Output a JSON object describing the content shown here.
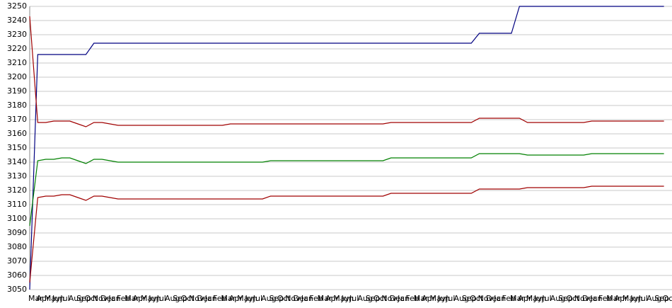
{
  "chart_data": {
    "type": "line",
    "categories": [
      "Mar",
      "Apr",
      "May",
      "Jun",
      "Jul",
      "Aug",
      "Sep",
      "Oct",
      "Nov",
      "Dec",
      "Jan",
      "Feb",
      "Mar",
      "Apr",
      "May",
      "Jun",
      "Jul",
      "Aug",
      "Sep",
      "Oct",
      "Nov",
      "Dec",
      "Jan",
      "Feb",
      "Mar",
      "Apr",
      "May",
      "Jun",
      "Jul",
      "Aug",
      "Sep",
      "Oct",
      "Nov",
      "Dec",
      "Jan",
      "Feb",
      "Mar",
      "Apr",
      "May",
      "Jun",
      "Jul",
      "Aug",
      "Sep",
      "Oct",
      "Nov",
      "Dec",
      "Jan",
      "Feb",
      "Mar",
      "Apr",
      "May",
      "Jun",
      "Jul",
      "Aug",
      "Sep",
      "Oct",
      "Nov",
      "Dec",
      "Jan",
      "Feb",
      "Mar",
      "Apr",
      "May",
      "Jun",
      "Jul",
      "Aug",
      "Sep",
      "Oct",
      "Nov",
      "Dec",
      "Jan",
      "Feb",
      "Mar",
      "Apr",
      "May",
      "Jun",
      "Jul",
      "Aug",
      "Sep",
      "Oct"
    ],
    "series": [
      {
        "color": "#000080",
        "values": [
          3050,
          3216,
          3216,
          3216,
          3216,
          3216,
          3216,
          3216,
          3224,
          3224,
          3224,
          3224,
          3224,
          3224,
          3224,
          3224,
          3224,
          3224,
          3224,
          3224,
          3224,
          3224,
          3224,
          3224,
          3224,
          3224,
          3224,
          3224,
          3224,
          3224,
          3224,
          3224,
          3224,
          3224,
          3224,
          3224,
          3224,
          3224,
          3224,
          3224,
          3224,
          3224,
          3224,
          3224,
          3224,
          3224,
          3224,
          3224,
          3224,
          3224,
          3224,
          3224,
          3224,
          3224,
          3224,
          3224,
          3231,
          3231,
          3231,
          3231,
          3231,
          3250,
          3250,
          3250,
          3250,
          3250,
          3250,
          3250,
          3250,
          3250,
          3250,
          3250,
          3250,
          3250,
          3250,
          3250,
          3250,
          3250,
          3250,
          3250
        ]
      },
      {
        "color": "#a00000",
        "values": [
          3243,
          3168,
          3168,
          3169,
          3169,
          3169,
          3167,
          3165,
          3168,
          3168,
          3167,
          3166,
          3166,
          3166,
          3166,
          3166,
          3166,
          3166,
          3166,
          3166,
          3166,
          3166,
          3166,
          3166,
          3166,
          3167,
          3167,
          3167,
          3167,
          3167,
          3167,
          3167,
          3167,
          3167,
          3167,
          3167,
          3167,
          3167,
          3167,
          3167,
          3167,
          3167,
          3167,
          3167,
          3167,
          3168,
          3168,
          3168,
          3168,
          3168,
          3168,
          3168,
          3168,
          3168,
          3168,
          3168,
          3171,
          3171,
          3171,
          3171,
          3171,
          3171,
          3168,
          3168,
          3168,
          3168,
          3168,
          3168,
          3168,
          3168,
          3169,
          3169,
          3169,
          3169,
          3169,
          3169,
          3169,
          3169,
          3169,
          3169
        ]
      },
      {
        "color": "#008000",
        "values": [
          3095,
          3141,
          3142,
          3142,
          3143,
          3143,
          3141,
          3139,
          3142,
          3142,
          3141,
          3140,
          3140,
          3140,
          3140,
          3140,
          3140,
          3140,
          3140,
          3140,
          3140,
          3140,
          3140,
          3140,
          3140,
          3140,
          3140,
          3140,
          3140,
          3140,
          3141,
          3141,
          3141,
          3141,
          3141,
          3141,
          3141,
          3141,
          3141,
          3141,
          3141,
          3141,
          3141,
          3141,
          3141,
          3143,
          3143,
          3143,
          3143,
          3143,
          3143,
          3143,
          3143,
          3143,
          3143,
          3143,
          3146,
          3146,
          3146,
          3146,
          3146,
          3146,
          3145,
          3145,
          3145,
          3145,
          3145,
          3145,
          3145,
          3145,
          3146,
          3146,
          3146,
          3146,
          3146,
          3146,
          3146,
          3146,
          3146,
          3146
        ]
      },
      {
        "color": "#a00000",
        "values": [
          3055,
          3115,
          3116,
          3116,
          3117,
          3117,
          3115,
          3113,
          3116,
          3116,
          3115,
          3114,
          3114,
          3114,
          3114,
          3114,
          3114,
          3114,
          3114,
          3114,
          3114,
          3114,
          3114,
          3114,
          3114,
          3114,
          3114,
          3114,
          3114,
          3114,
          3116,
          3116,
          3116,
          3116,
          3116,
          3116,
          3116,
          3116,
          3116,
          3116,
          3116,
          3116,
          3116,
          3116,
          3116,
          3118,
          3118,
          3118,
          3118,
          3118,
          3118,
          3118,
          3118,
          3118,
          3118,
          3118,
          3121,
          3121,
          3121,
          3121,
          3121,
          3121,
          3122,
          3122,
          3122,
          3122,
          3122,
          3122,
          3122,
          3122,
          3123,
          3123,
          3123,
          3123,
          3123,
          3123,
          3123,
          3123,
          3123,
          3123
        ]
      }
    ],
    "ylim": [
      3050,
      3250
    ],
    "yticks": [
      3050,
      3060,
      3070,
      3080,
      3090,
      3100,
      3110,
      3120,
      3130,
      3140,
      3150,
      3160,
      3170,
      3180,
      3190,
      3200,
      3210,
      3220,
      3230,
      3240,
      3250
    ],
    "grid": true
  }
}
